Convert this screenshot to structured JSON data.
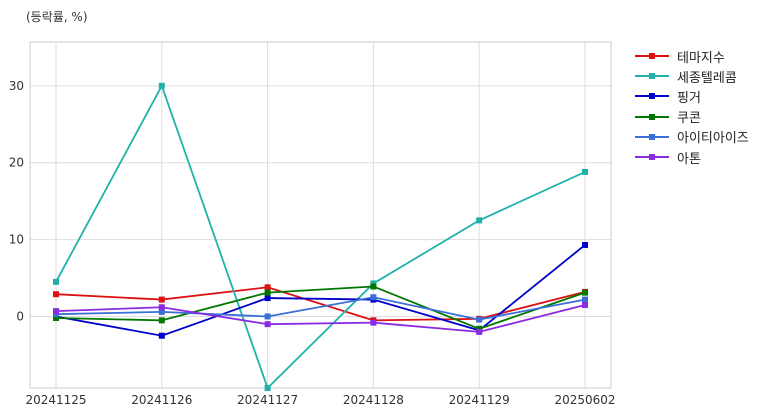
{
  "unit_label": "(등락률, %)",
  "chart_data": {
    "type": "line",
    "x": [
      "20241125",
      "20241126",
      "20241127",
      "20241128",
      "20241129",
      "20250602"
    ],
    "ylim": [
      -9.3,
      35.7
    ],
    "yticks": [
      0,
      10,
      20,
      30
    ],
    "grid": true,
    "legend_position": "outside-top-right",
    "series": [
      {
        "name": "테마지수",
        "color": "#dd1111",
        "values": [
          2.9,
          2.2,
          3.8,
          -0.5,
          -0.3,
          3.2
        ]
      },
      {
        "name": "세종텔레콤",
        "color": "#20b2aa",
        "values": [
          4.5,
          30.0,
          -9.3,
          4.3,
          12.5,
          18.8
        ]
      },
      {
        "name": "핑거",
        "color": "#0000cc",
        "values": [
          0.0,
          -2.5,
          2.4,
          2.2,
          -1.8,
          9.3
        ]
      },
      {
        "name": "쿠콘",
        "color": "#007700",
        "values": [
          -0.2,
          -0.5,
          3.1,
          3.9,
          -1.6,
          3.1
        ]
      },
      {
        "name": "아이티아이즈",
        "color": "#3a6fd8",
        "values": [
          0.3,
          0.6,
          0.0,
          2.5,
          -0.4,
          2.2
        ]
      },
      {
        "name": "아톤",
        "color": "#8a2be2",
        "values": [
          0.7,
          1.2,
          -1.0,
          -0.8,
          -2.0,
          1.5
        ]
      }
    ]
  }
}
